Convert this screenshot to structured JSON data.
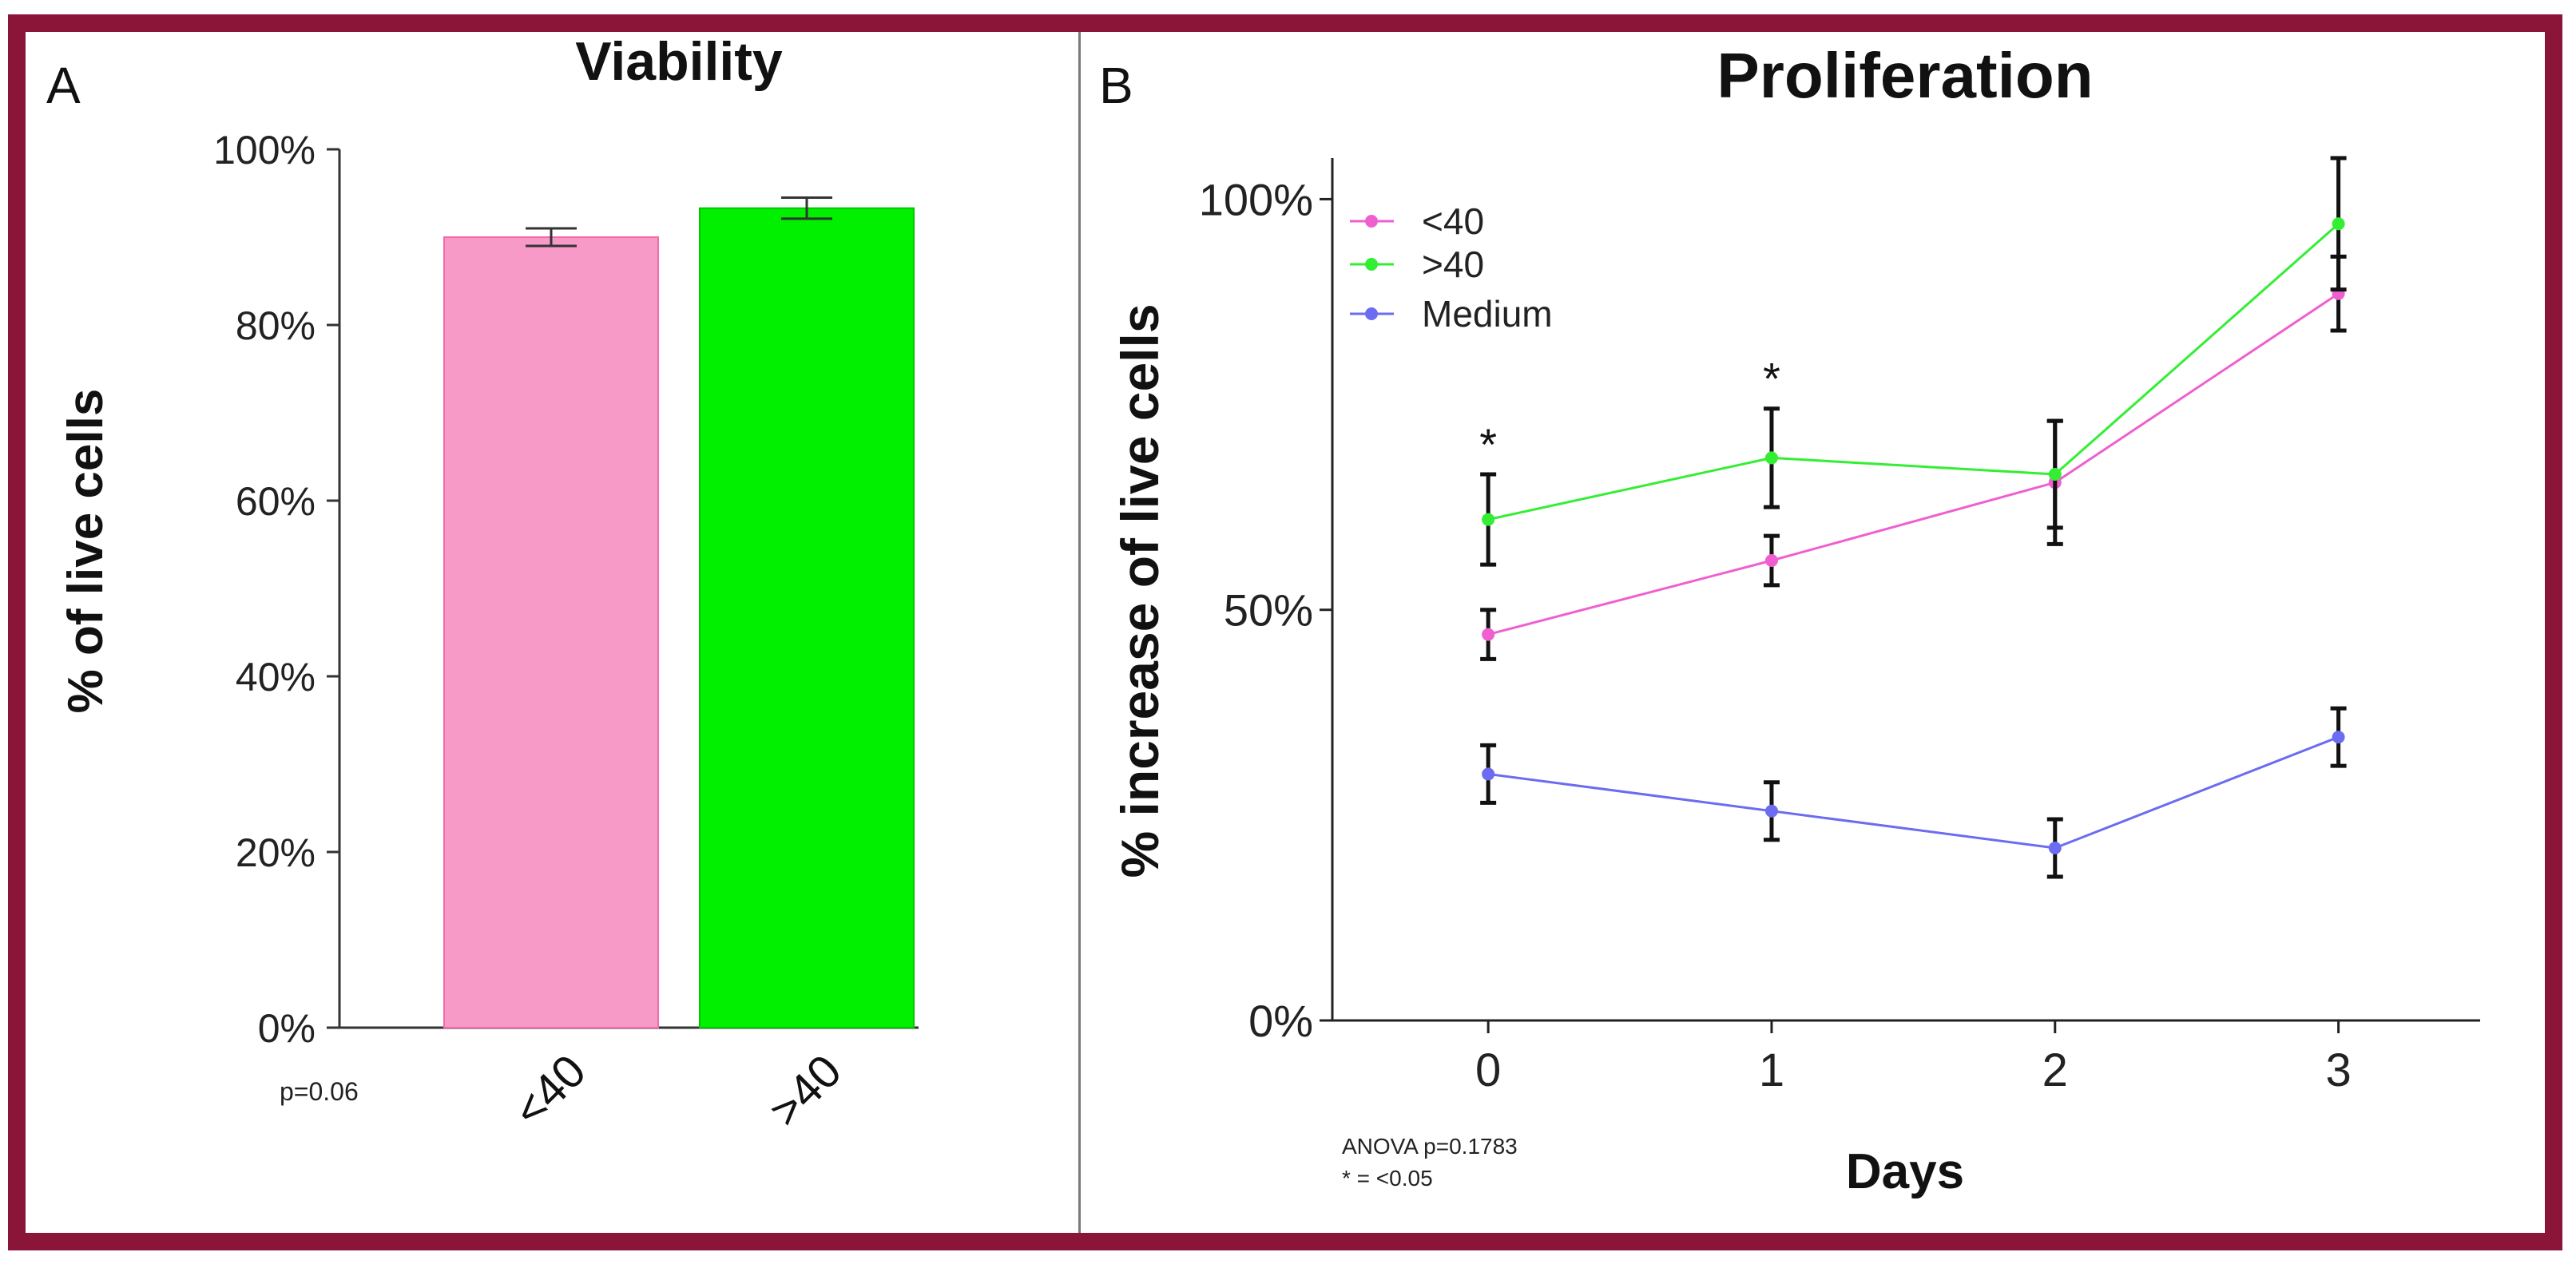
{
  "panels": {
    "a": {
      "letter": "A"
    },
    "b": {
      "letter": "B"
    }
  },
  "colors": {
    "frame": "#8b1538",
    "lt40": "#f79ac8",
    "gt40": "#00f000",
    "lt40_line": "#f05fd0",
    "gt40_line": "#33ee33",
    "medium": "#6b6cf0"
  },
  "chart_data": [
    {
      "id": "viability",
      "type": "bar",
      "title": "Viability",
      "xlabel": "",
      "ylabel": "% of live cells",
      "categories": [
        "<40",
        ">40"
      ],
      "values": [
        90,
        93.3
      ],
      "errors": [
        1.0,
        1.2
      ],
      "ylim": [
        0,
        100
      ],
      "yticks": [
        0,
        20,
        40,
        60,
        80,
        100
      ],
      "ytick_labels": [
        "0%",
        "20%",
        "40%",
        "60%",
        "80%",
        "100%"
      ],
      "annotation": "p=0.06"
    },
    {
      "id": "proliferation",
      "type": "line",
      "title": "Proliferation",
      "xlabel": "Days",
      "ylabel": "% increase of live cells",
      "x": [
        0,
        1,
        2,
        3
      ],
      "xlim": [
        -0.55,
        3.5
      ],
      "ylim": [
        0,
        105
      ],
      "yticks": [
        0,
        50,
        100
      ],
      "ytick_labels": [
        "0%",
        "50%",
        "100%"
      ],
      "xtick_labels": [
        "0",
        "1",
        "2",
        "3"
      ],
      "series": [
        {
          "name": "<40",
          "values": [
            47,
            56,
            65.5,
            88.5
          ],
          "errors": [
            3,
            3,
            7.5,
            4.5
          ]
        },
        {
          "name": ">40",
          "values": [
            61,
            68.5,
            66.5,
            97
          ],
          "errors": [
            5.5,
            6,
            6.5,
            8
          ]
        },
        {
          "name": "Medium",
          "values": [
            30,
            25.5,
            21,
            34.5
          ],
          "errors": [
            3.5,
            3.5,
            3.5,
            3.5
          ]
        }
      ],
      "significance": [
        {
          "x": 0,
          "label": "*"
        },
        {
          "x": 1,
          "label": "*"
        }
      ],
      "notes": [
        "ANOVA p=0.1783",
        "* = <0.05"
      ]
    }
  ]
}
